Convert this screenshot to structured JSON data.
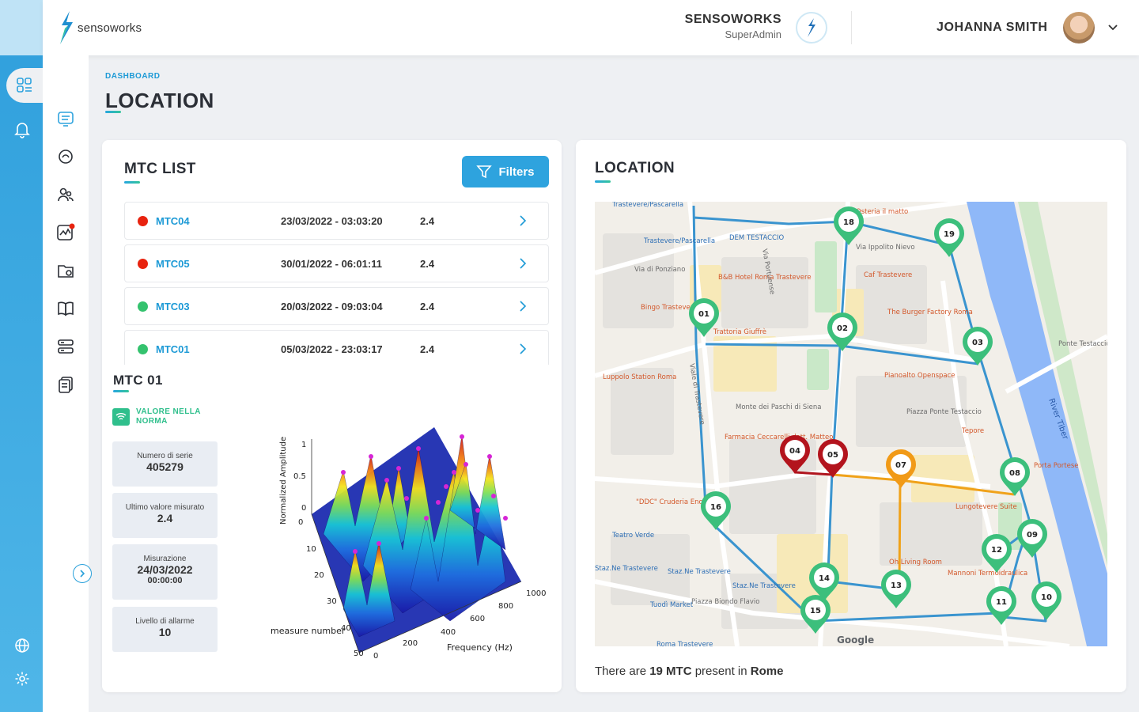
{
  "brand": {
    "name": "sensoworks"
  },
  "header": {
    "org_name": "SENSOWORKS",
    "org_role": "SuperAdmin",
    "user_name": "JOHANNA SMITH"
  },
  "breadcrumb": "DASHBOARD",
  "page_title": "LOCATION",
  "mtc_list": {
    "title": "MTC LIST",
    "filters_label": "Filters",
    "rows": [
      {
        "name": "MTC04",
        "date": "23/03/2022 - 03:03:20",
        "value": "2.4",
        "status_color": "#e8230f"
      },
      {
        "name": "MTC05",
        "date": "30/01/2022 - 06:01:11",
        "value": "2.4",
        "status_color": "#e8230f"
      },
      {
        "name": "MTC03",
        "date": "20/03/2022 - 09:03:04",
        "value": "2.4",
        "status_color": "#34c26e"
      },
      {
        "name": "MTC01",
        "date": "05/03/2022 - 23:03:17",
        "value": "2.4",
        "status_color": "#34c26e"
      }
    ]
  },
  "detail": {
    "title": "MTC 01",
    "status_text": "VALORE NELLA NORMA",
    "stats": [
      {
        "label": "Numero di serie",
        "value": "405279"
      },
      {
        "label": "Ultimo valore misurato",
        "value": "2.4"
      },
      {
        "label": "Misurazione",
        "value": "24/03/2022",
        "value2": "00:00:00"
      },
      {
        "label": "Livello di allarme",
        "value": "10"
      }
    ],
    "plot": {
      "ylabel": "Normalized Amplitude",
      "xlabel": "Frequency (Hz)",
      "zlabel": "measure number",
      "amp_ticks": [
        "1",
        "0.5",
        "0"
      ],
      "measure_ticks": [
        "0",
        "10",
        "20",
        "30",
        "40",
        "50"
      ],
      "freq_ticks": [
        "0",
        "200",
        "400",
        "600",
        "800",
        "1000"
      ]
    }
  },
  "location": {
    "title": "LOCATION",
    "footer_pre": "There are ",
    "footer_count": "19 MTC",
    "footer_mid": " present in ",
    "footer_city": "Rome",
    "pins": [
      {
        "label": "18",
        "status": "green"
      },
      {
        "label": "19",
        "status": "green"
      },
      {
        "label": "01",
        "status": "green"
      },
      {
        "label": "02",
        "status": "green"
      },
      {
        "label": "03",
        "status": "green"
      },
      {
        "label": "04",
        "status": "red"
      },
      {
        "label": "05",
        "status": "red"
      },
      {
        "label": "07",
        "status": "orange"
      },
      {
        "label": "08",
        "status": "green"
      },
      {
        "label": "16",
        "status": "green"
      },
      {
        "label": "09",
        "status": "green"
      },
      {
        "label": "12",
        "status": "green"
      },
      {
        "label": "14",
        "status": "green"
      },
      {
        "label": "13",
        "status": "green"
      },
      {
        "label": "15",
        "status": "green"
      },
      {
        "label": "11",
        "status": "green"
      },
      {
        "label": "10",
        "status": "green"
      }
    ],
    "places": [
      "Trastevere/Pascarella",
      "Trastevere/Pascarella",
      "DEM TESTACCIO",
      "Osteria il matto",
      "Via Ippolito Nievo",
      "B&B Hotel Roma Trastevere",
      "Caf Trastevere",
      "Via di Ponziano",
      "Bingo Trastevere",
      "The Burger Factory Roma",
      "Ponte Testaccio",
      "Trattoria Giuffrè",
      "Pianoalto Openspace",
      "Luppolo Station Roma",
      "Monte dei Paschi di Siena",
      "Piazza Ponte Testaccio",
      "Tepore",
      "Farmacia Ceccarelli dott. Matteo",
      "Porta Portese",
      "Lungotevere Suite",
      "\"DDC\" Cruderia EnoBistrot",
      "Teatro Verde",
      "Oh Living Room",
      "Mannoni Termoidraulica",
      "Staz.Ne Trastevere",
      "Staz.Ne Trastevere",
      "Staz.Ne Trastevere",
      "Tuodì Market",
      "Piazza Biondo Flavio",
      "Roma Trastevere",
      "River Tiber",
      "Viale di Trastevere",
      "Via Portuense",
      "Google"
    ]
  }
}
